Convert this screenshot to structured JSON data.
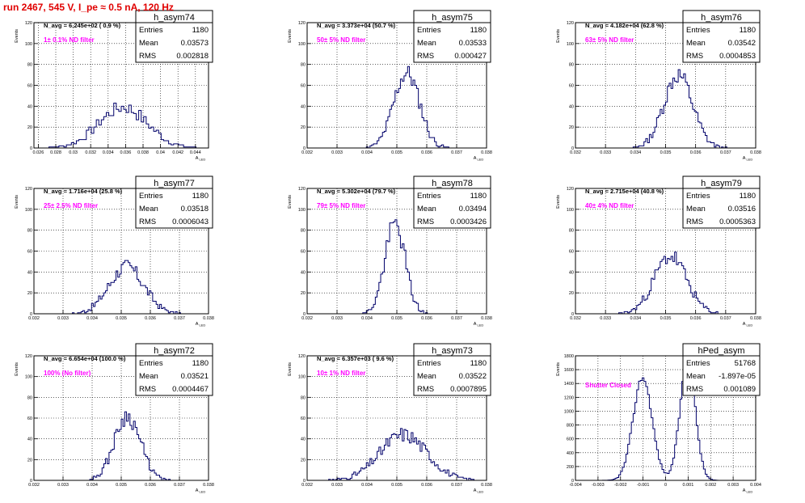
{
  "page_title": "run 2467,   545 V, I_pe ≈ 0.5 nA, 120 Hz",
  "colors": {
    "histogram": "#00006a",
    "annotation": "#ff00ff",
    "title": "#e00000",
    "frame": "#000000",
    "grid": "#000000"
  },
  "chart_data": [
    {
      "type": "histogram",
      "name": "h_asym74",
      "navg": "N_avg = 6.245e+02 ( 0.9 %)",
      "filter": "1± 0.1% ND filter",
      "stats": {
        "entries": "1180",
        "mean": "0.03573",
        "rms": "0.002818"
      },
      "xlabel": "A_LED",
      "ylabel": "Events",
      "xlim": [
        0.0255,
        0.0455
      ],
      "ylim": [
        0,
        120
      ],
      "xticks": [
        "0.026",
        "0.028",
        "0.03",
        "0.032",
        "0.034",
        "0.036",
        "0.038",
        "0.04",
        "0.042",
        "0.044"
      ],
      "yticks": [
        "0",
        "20",
        "40",
        "60",
        "80",
        "100",
        "120"
      ],
      "mean_x": 0.0357,
      "sigma": 0.0028,
      "peak": 39,
      "gap": 0.0012,
      "shape": "gauss",
      "bins": 70,
      "seed": 7
    },
    {
      "type": "histogram",
      "name": "h_asym75",
      "navg": "N_avg = 3.373e+04 (50.7 %)",
      "filter": "50± 5% ND filter",
      "stats": {
        "entries": "1180",
        "mean": "0.03533",
        "rms": "0.000427"
      },
      "xlabel": "A_LED",
      "ylabel": "Events",
      "xlim": [
        0.032,
        0.038
      ],
      "ylim": [
        0,
        120
      ],
      "xticks": [
        "0.032",
        "0.033",
        "0.034",
        "0.035",
        "0.036",
        "0.037",
        "0.038"
      ],
      "yticks": [
        "0",
        "20",
        "40",
        "60",
        "80",
        "100",
        "120"
      ],
      "mean_x": 0.03533,
      "sigma": 0.00043,
      "peak": 72,
      "gap": 0.0012,
      "shape": "gauss",
      "bins": 100,
      "seed": 11
    },
    {
      "type": "histogram",
      "name": "h_asym76",
      "navg": "N_avg = 4.182e+04 (62.8 %)",
      "filter": "63± 5% ND filter",
      "stats": {
        "entries": "1180",
        "mean": "0.03542",
        "rms": "0.0004853"
      },
      "xlabel": "A_LED",
      "ylabel": "Events",
      "xlim": [
        0.032,
        0.038
      ],
      "ylim": [
        0,
        120
      ],
      "xticks": [
        "0.032",
        "0.033",
        "0.034",
        "0.035",
        "0.036",
        "0.037",
        "0.038"
      ],
      "yticks": [
        "0",
        "20",
        "40",
        "60",
        "80",
        "100",
        "120"
      ],
      "mean_x": 0.03542,
      "sigma": 0.00048,
      "peak": 70,
      "gap": 0.0012,
      "shape": "gauss",
      "bins": 100,
      "seed": 13
    },
    {
      "type": "histogram",
      "name": "h_asym77",
      "navg": "N_avg = 1.716e+04 (25.8 %)",
      "filter": "25± 2.5% ND filter",
      "stats": {
        "entries": "1180",
        "mean": "0.03518",
        "rms": "0.0006043"
      },
      "xlabel": "A_LED",
      "ylabel": "Events",
      "xlim": [
        0.032,
        0.038
      ],
      "ylim": [
        0,
        120
      ],
      "xticks": [
        "0.032",
        "0.033",
        "0.034",
        "0.035",
        "0.036",
        "0.037",
        "0.038"
      ],
      "yticks": [
        "0",
        "20",
        "40",
        "60",
        "80",
        "100",
        "120"
      ],
      "mean_x": 0.03518,
      "sigma": 0.0006,
      "peak": 45,
      "gap": 0.0012,
      "shape": "gauss",
      "bins": 100,
      "seed": 17
    },
    {
      "type": "histogram",
      "name": "h_asym78",
      "navg": "N_avg = 5.302e+04 (79.7 %)",
      "filter": "79± 5% ND filter",
      "stats": {
        "entries": "1180",
        "mean": "0.03494",
        "rms": "0.0003426"
      },
      "xlabel": "A_LED",
      "ylabel": "Events",
      "xlim": [
        0.032,
        0.038
      ],
      "ylim": [
        0,
        120
      ],
      "xticks": [
        "0.032",
        "0.033",
        "0.034",
        "0.035",
        "0.036",
        "0.037",
        "0.038"
      ],
      "yticks": [
        "0",
        "20",
        "40",
        "60",
        "80",
        "100",
        "120"
      ],
      "mean_x": 0.03494,
      "sigma": 0.00034,
      "peak": 86,
      "gap": 0.0012,
      "shape": "gauss",
      "bins": 100,
      "seed": 19
    },
    {
      "type": "histogram",
      "name": "h_asym79",
      "navg": "N_avg = 2.715e+04 (40.8 %)",
      "filter": "40± 4% ND filter",
      "stats": {
        "entries": "1180",
        "mean": "0.03516",
        "rms": "0.0005363"
      },
      "xlabel": "A_LED",
      "ylabel": "Events",
      "xlim": [
        0.032,
        0.038
      ],
      "ylim": [
        0,
        120
      ],
      "xticks": [
        "0.032",
        "0.033",
        "0.034",
        "0.035",
        "0.036",
        "0.037",
        "0.038"
      ],
      "yticks": [
        "0",
        "20",
        "40",
        "60",
        "80",
        "100",
        "120"
      ],
      "mean_x": 0.03516,
      "sigma": 0.00054,
      "peak": 55,
      "gap": 0.0012,
      "shape": "gauss",
      "bins": 100,
      "seed": 23
    },
    {
      "type": "histogram",
      "name": "h_asym72",
      "navg": "N_avg = 6.654e+04 (100.0 %)",
      "filter": "100% (No filter)",
      "stats": {
        "entries": "1180",
        "mean": "0.03521",
        "rms": "0.0004467"
      },
      "xlabel": "A_LED",
      "ylabel": "Events",
      "xlim": [
        0.032,
        0.038
      ],
      "ylim": [
        0,
        120
      ],
      "xticks": [
        "0.032",
        "0.033",
        "0.034",
        "0.035",
        "0.036",
        "0.037",
        "0.038"
      ],
      "yticks": [
        "0",
        "20",
        "40",
        "60",
        "80",
        "100",
        "120"
      ],
      "mean_x": 0.03521,
      "sigma": 0.00045,
      "peak": 62,
      "gap": 0.0012,
      "shape": "gauss",
      "bins": 100,
      "seed": 29
    },
    {
      "type": "histogram",
      "name": "h_asym73",
      "navg": "N_avg = 6.357e+03 ( 9.6 %)",
      "filter": "10± 1% ND filter",
      "stats": {
        "entries": "1180",
        "mean": "0.03522",
        "rms": "0.0007895"
      },
      "xlabel": "A_LED",
      "ylabel": "Events",
      "xlim": [
        0.032,
        0.038
      ],
      "ylim": [
        0,
        120
      ],
      "xticks": [
        "0.032",
        "0.033",
        "0.034",
        "0.035",
        "0.036",
        "0.037",
        "0.038"
      ],
      "yticks": [
        "0",
        "20",
        "40",
        "60",
        "80",
        "100",
        "120"
      ],
      "mean_x": 0.03522,
      "sigma": 0.00079,
      "peak": 44,
      "gap": 0.0012,
      "shape": "gauss",
      "bins": 100,
      "seed": 31
    },
    {
      "type": "histogram",
      "name": "hPed_asym",
      "navg": "",
      "filter": "Shutter Closed",
      "stats": {
        "entries": "51768",
        "mean": "-1.897e-05",
        "rms": "0.001089"
      },
      "xlabel": "A_LED",
      "ylabel": "Events",
      "xlim": [
        -0.004,
        0.004
      ],
      "ylim": [
        0,
        1800
      ],
      "xticks": [
        "-0.004",
        "-0.003",
        "-0.002",
        "-0.001",
        "0",
        "0.001",
        "0.002",
        "0.003",
        "0.004"
      ],
      "yticks": [
        "0",
        "200",
        "400",
        "600",
        "800",
        "1000",
        "1200",
        "1400",
        "1600",
        "1800"
      ],
      "peaks": [
        {
          "mean_x": -0.00102,
          "sigma": 0.00042,
          "peak": 1490
        },
        {
          "mean_x": 0.00098,
          "sigma": 0.00034,
          "peak": 1720
        }
      ],
      "gap": 0.0012,
      "shape": "double",
      "bins": 100,
      "seed": 37
    }
  ]
}
